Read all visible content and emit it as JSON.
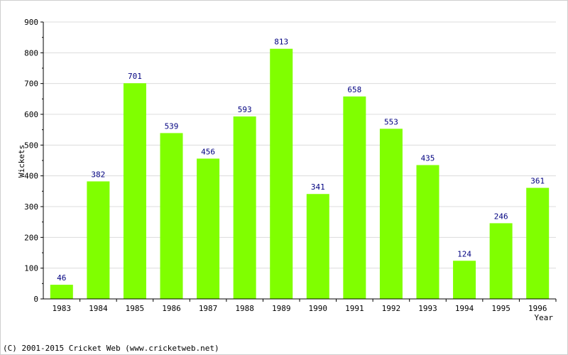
{
  "footer": {
    "copyright": "(C) 2001-2015 Cricket Web (www.cricketweb.net)"
  },
  "chart_data": {
    "type": "bar",
    "title": "",
    "xlabel": "Year",
    "ylabel": "Wickets",
    "categories": [
      "1983",
      "1984",
      "1985",
      "1986",
      "1987",
      "1988",
      "1989",
      "1990",
      "1991",
      "1992",
      "1993",
      "1994",
      "1995",
      "1996"
    ],
    "values": [
      46,
      382,
      701,
      539,
      456,
      593,
      813,
      341,
      658,
      553,
      435,
      124,
      246,
      361
    ],
    "ylim": [
      0,
      900
    ],
    "yticks": [
      0,
      100,
      200,
      300,
      400,
      500,
      600,
      700,
      800,
      900
    ],
    "grid": true,
    "data_labels": true,
    "colors": {
      "bar": "#80ff00",
      "value_label": "#000080",
      "grid": "#dcdcdc",
      "axis": "#000000"
    }
  }
}
